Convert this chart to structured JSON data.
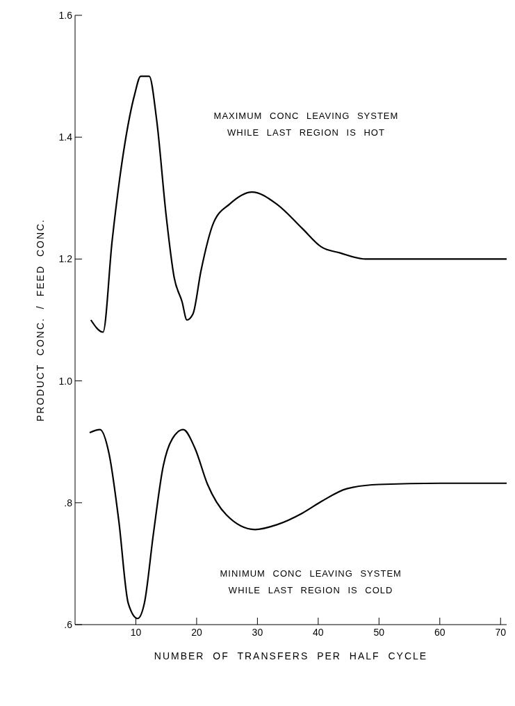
{
  "chart_data": {
    "type": "line",
    "xlabel": "NUMBER OF TRANSFERS PER HALF CYCLE",
    "ylabel": "PRODUCT CONC. / FEED CONC.",
    "xlim": [
      0,
      71
    ],
    "xticks": [
      10,
      20,
      30,
      40,
      50,
      60,
      70
    ],
    "ylim": [
      0.6,
      1.6
    ],
    "yticks": [
      {
        "value": 0.6,
        "label": ".6"
      },
      {
        "value": 0.8,
        "label": ".8"
      },
      {
        "value": 1.0,
        "label": "1.0"
      },
      {
        "value": 1.2,
        "label": "1.2"
      },
      {
        "value": 1.4,
        "label": "1.4"
      },
      {
        "value": 1.6,
        "label": "1.6"
      }
    ],
    "marker": "none",
    "line_style": "solid",
    "annotations": [
      "MAXIMUM CONC LEAVING SYSTEM\nWHILE LAST REGION IS HOT",
      "MINIMUM CONC LEAVING SYSTEM\nWHILE LAST REGION IS COLD"
    ],
    "series": [
      {
        "color": "#000000",
        "x": [
          2.6,
          4.6,
          6.1,
          8.2,
          9.8,
          10.8,
          12.2,
          13.4,
          15,
          16.3,
          17.6,
          18.4,
          19.4,
          20.7,
          22.8,
          25.4,
          29.1,
          33.2,
          37.4,
          40.5,
          43.6,
          47.8,
          52,
          60,
          71
        ],
        "values": [
          1.1,
          1.08,
          1.23,
          1.39,
          1.47,
          1.5,
          1.5,
          1.43,
          1.27,
          1.17,
          1.13,
          1.1,
          1.11,
          1.18,
          1.26,
          1.29,
          1.31,
          1.29,
          1.25,
          1.22,
          1.21,
          1.2,
          1.2,
          1.2,
          1.2
        ]
      },
      {
        "color": "#000000",
        "x": [
          2.4,
          4.1,
          5.6,
          7.2,
          8.75,
          10.3,
          11.4,
          12.9,
          14.5,
          16,
          17.8,
          19.7,
          21.8,
          24.9,
          29.6,
          33.2,
          37.4,
          40.5,
          44.7,
          50,
          60,
          71
        ],
        "values": [
          0.915,
          0.92,
          0.88,
          0.77,
          0.635,
          0.61,
          0.635,
          0.75,
          0.86,
          0.905,
          0.92,
          0.89,
          0.83,
          0.78,
          0.756,
          0.764,
          0.783,
          0.802,
          0.823,
          0.83,
          0.832,
          0.832
        ]
      }
    ]
  }
}
